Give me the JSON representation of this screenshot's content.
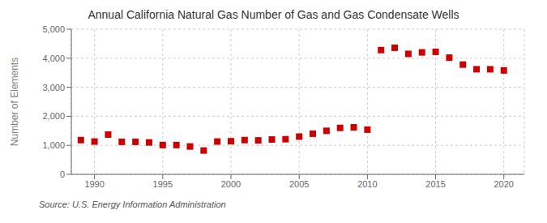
{
  "chart_data": {
    "type": "scatter",
    "title": "Annual California Natural Gas Number of Gas and Gas Condensate Wells",
    "y_label": "Number of Elements",
    "annotations": [
      "Source: U.S. Energy Information Administration"
    ],
    "x": [
      1989,
      1990,
      1991,
      1992,
      1993,
      1994,
      1995,
      1996,
      1997,
      1998,
      1999,
      2000,
      2001,
      2002,
      2003,
      2004,
      2005,
      2006,
      2007,
      2008,
      2009,
      2010,
      2011,
      2012,
      2013,
      2014,
      2015,
      2016,
      2017,
      2018,
      2019,
      2020
    ],
    "values": [
      1180,
      1130,
      1370,
      1120,
      1120,
      1100,
      1010,
      1010,
      960,
      820,
      1130,
      1140,
      1180,
      1170,
      1200,
      1210,
      1300,
      1400,
      1500,
      1600,
      1620,
      1540,
      4280,
      4360,
      4150,
      4200,
      4220,
      4020,
      3780,
      3620,
      3620,
      3580
    ],
    "color": "#cc0000",
    "marker": "square",
    "xlim": [
      1988.3,
      2021.5
    ],
    "xticks": [
      1990,
      1995,
      2000,
      2005,
      2010,
      2015,
      2020
    ],
    "ylim": [
      0,
      5000
    ],
    "yticks": [
      0,
      {
        "value": 1000,
        "label": "1,000"
      },
      {
        "value": 2000,
        "label": "2,000"
      },
      {
        "value": 3000,
        "label": "3,000"
      },
      {
        "value": 4000,
        "label": "4,000"
      },
      {
        "value": 5000,
        "label": "5,000"
      }
    ],
    "grid": true
  }
}
